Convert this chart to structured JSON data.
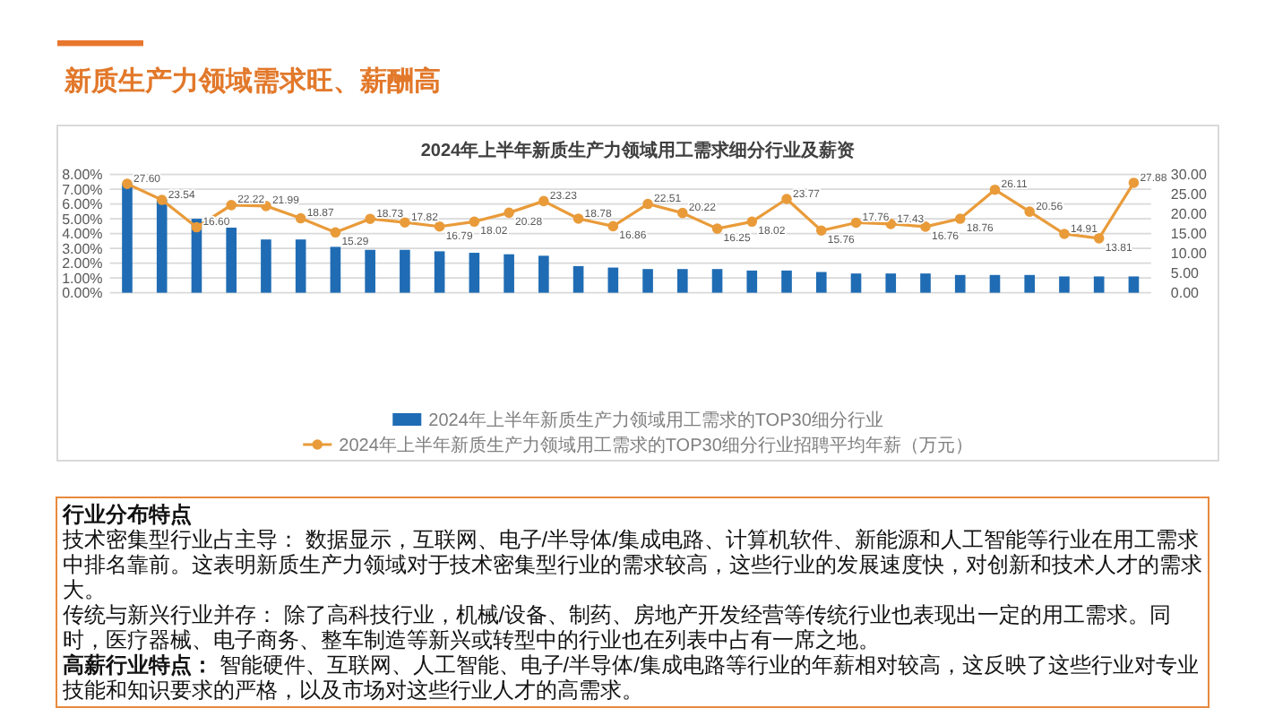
{
  "chart_data": {
    "type": "bar",
    "title": "新质生产力领域需求旺、薪酬高",
    "subtitle": "2024年上半年新质生产力领域用工需求细分行业及薪资",
    "categories": [
      null,
      null,
      null,
      null,
      null,
      null,
      null,
      null,
      null,
      null,
      null,
      null,
      null,
      null,
      null,
      null,
      null,
      null,
      null,
      null,
      null,
      null,
      null,
      null,
      null,
      null,
      null,
      null,
      null,
      null
    ],
    "series": [
      {
        "name": "2024年上半年新质生产力领域用工需求的TOP30细分行业",
        "color": "#1f6cb4",
        "values": [
          7.4,
          6.3,
          5.0,
          4.4,
          3.6,
          3.6,
          3.1,
          2.9,
          2.9,
          2.8,
          2.7,
          2.6,
          2.5,
          1.8,
          1.7,
          1.6,
          1.6,
          1.6,
          1.5,
          1.5,
          1.4,
          1.3,
          1.3,
          1.3,
          1.2,
          1.2,
          1.2,
          1.1,
          1.1,
          1.1
        ]
      },
      {
        "name": "2024年上半年新质生产力领域用工需求的TOP30细分行业招聘平均年薪（万元）",
        "type": "line",
        "axis": "y2",
        "color": "#e99b3a",
        "values": [
          27.6,
          23.54,
          16.6,
          22.22,
          21.99,
          18.87,
          15.29,
          18.73,
          17.82,
          16.79,
          18.02,
          20.28,
          23.23,
          18.78,
          16.86,
          22.51,
          20.22,
          16.25,
          18.02,
          23.77,
          15.76,
          17.76,
          17.43,
          16.76,
          18.76,
          26.11,
          20.56,
          14.91,
          13.81,
          27.88
        ],
        "value_labels": [
          "27.60",
          "23.54",
          "16.60",
          "22.22",
          "21.99",
          "18.87",
          "15.29",
          "18.73",
          "17.82",
          "16.79",
          "18.02",
          "20.28",
          "23.23",
          "18.78",
          "16.86",
          "22.51",
          "20.22",
          "16.25",
          "18.02",
          "23.77",
          "15.76",
          "17.76",
          "17.43",
          "16.76",
          "18.76",
          "26.11",
          "20.56",
          "14.91",
          "13.81",
          "27.88"
        ]
      }
    ],
    "ylim": [
      0,
      8
    ],
    "yticks": [
      {
        "value": 0,
        "label": "0.00%"
      },
      {
        "value": 1,
        "label": "1.00%"
      },
      {
        "value": 2,
        "label": "2.00%"
      },
      {
        "value": 3,
        "label": "3.00%"
      },
      {
        "value": 4,
        "label": "4.00%"
      },
      {
        "value": 5,
        "label": "5.00%"
      },
      {
        "value": 6,
        "label": "6.00%"
      },
      {
        "value": 7,
        "label": "7.00%"
      },
      {
        "value": 8,
        "label": "8.00%"
      }
    ],
    "y2lim": [
      0,
      30
    ],
    "y2ticks": [
      {
        "value": 0,
        "label": "0.00"
      },
      {
        "value": 5,
        "label": "5.00"
      },
      {
        "value": 10,
        "label": "10.00"
      },
      {
        "value": 15,
        "label": "15.00"
      },
      {
        "value": 20,
        "label": "20.00"
      },
      {
        "value": 25,
        "label": "25.00"
      },
      {
        "value": 30,
        "label": "30.00"
      }
    ],
    "grid": "y",
    "legend": "bottom",
    "marker": "circle",
    "annotations": [
      "行业分布特点",
      "技术密集型行业占主导： 数据显示，互联网、电子/半导体/集成电路、计算机软件、新能源和人工智能等行业在用工需求中排名靠前。这表明新质生产力领域对于技术密集型行业的需求较高，这些行业的发展速度快，对创新和技术人才的需求大。",
      "传统与新兴行业并存： 除了高科技行业，机械/设备、制药、房地产开发经营等传统行业也表现出一定的用工需求。同时，医疗器械、电子商务、整车制造等新兴或转型中的行业也在列表中占有一席之地。",
      "**高薪行业特点：** 智能硬件、互联网、人工智能、电子/半导体/集成电路等行业的年薪相对较高，这反映了这些行业对专业技能和知识要求的严格，以及市场对这些行业人才的高需求。"
    ]
  }
}
